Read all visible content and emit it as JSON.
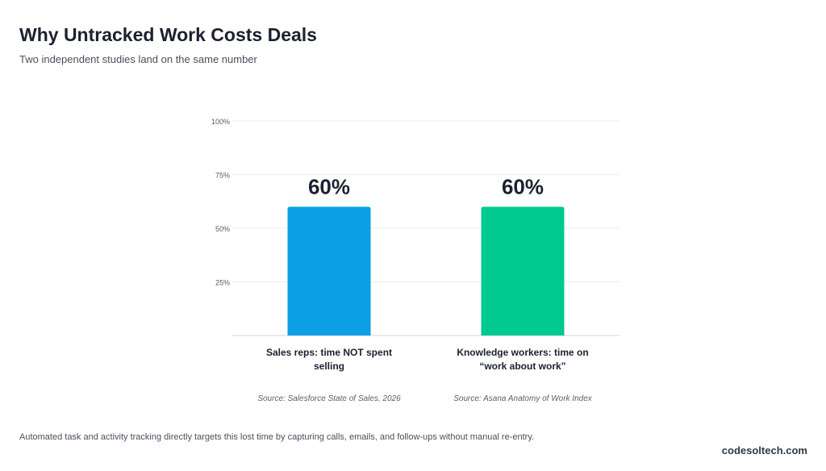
{
  "header": {
    "title": "Why Untracked Work Costs Deals",
    "subtitle": "Two independent studies land on the same number"
  },
  "chart_data": {
    "type": "bar",
    "categories": [
      [
        "Sales reps: time NOT spent",
        "selling"
      ],
      [
        "Knowledge workers: time on",
        "“work about work”"
      ]
    ],
    "values": [
      60,
      60
    ],
    "value_labels": [
      "60%",
      "60%"
    ],
    "sources": [
      "Source: Salesforce State of Sales, 2026",
      "Source: Asana Anatomy of Work Index"
    ],
    "colors": [
      "#0aa0e3",
      "#00c98f"
    ],
    "ylim": [
      0,
      100
    ],
    "yticks": [
      25,
      50,
      75,
      100
    ],
    "ytick_labels": [
      "25%",
      "50%",
      "75%",
      "100%"
    ],
    "grid": true,
    "legend": "none"
  },
  "footer": {
    "note": "Automated task and activity tracking directly targets this lost time by capturing calls, emails, and follow-ups without manual re-entry.",
    "brand": "codesoltech.com"
  }
}
